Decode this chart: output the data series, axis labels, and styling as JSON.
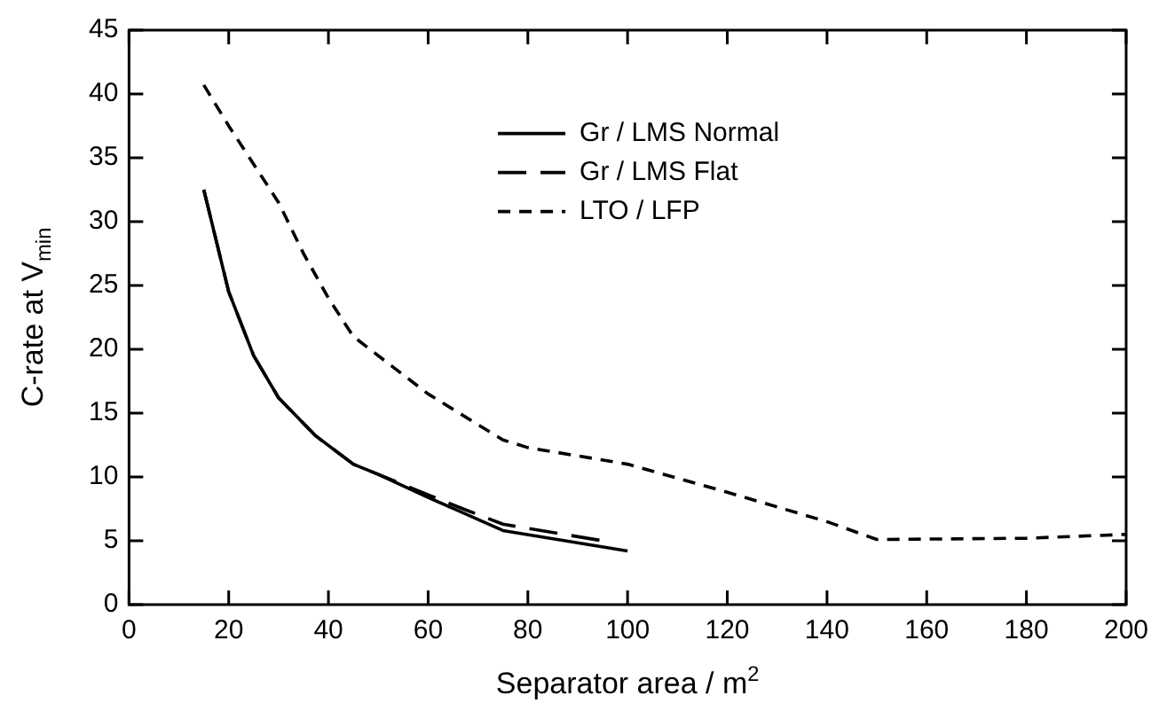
{
  "chart_data": {
    "type": "line",
    "xlabel": "Separator area / m$^{2}$",
    "ylabel": "C-rate at V$_{min}$",
    "xlim": [
      0,
      200
    ],
    "xticks": [
      0,
      20,
      40,
      60,
      80,
      100,
      120,
      140,
      160,
      180,
      200
    ],
    "ylim": [
      0,
      45
    ],
    "yticks": [
      0,
      5,
      10,
      15,
      20,
      25,
      30,
      35,
      40,
      45
    ],
    "grid": false,
    "legend": "top",
    "marker": "none",
    "series": [
      {
        "name": "Gr / LMS Normal",
        "color": "#000000",
        "line_style": "solid",
        "x": [
          15,
          20,
          25,
          30,
          37.5,
          45,
          50,
          60,
          75,
          100
        ],
        "values": [
          32.5,
          24.5,
          19.5,
          16.2,
          13.2,
          11,
          10.2,
          8.4,
          5.8,
          4.2
        ]
      },
      {
        "name": "Gr / LMS Flat",
        "color": "#000000",
        "line_style": "longdash",
        "x": [
          15,
          20,
          25,
          30,
          37.5,
          45,
          50,
          60,
          67,
          75,
          95
        ],
        "values": [
          32.5,
          24.5,
          19.5,
          16.2,
          13.2,
          11,
          10.2,
          8.6,
          7.5,
          6.3,
          5.0
        ]
      },
      {
        "name": "LTO / LFP",
        "color": "#000000",
        "line_style": "dashed",
        "x": [
          15,
          20,
          25,
          30,
          35,
          40,
          45,
          50,
          60,
          75,
          80,
          100,
          120,
          140,
          150,
          180,
          200
        ],
        "values": [
          40.7,
          37.5,
          34.5,
          31.5,
          27.5,
          24,
          21,
          19.5,
          16.5,
          12.9,
          12.3,
          11,
          8.8,
          6.5,
          5.1,
          5.2,
          5.5
        ]
      }
    ]
  }
}
